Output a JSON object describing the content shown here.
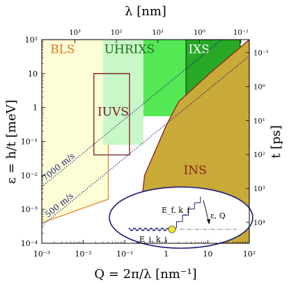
{
  "chart_data": {
    "type": "area",
    "x_scale": "log",
    "y_scale": "log",
    "xlim": [
      0.001,
      100
    ],
    "ylim": [
      0.0001,
      100
    ],
    "xlabel": "Q = 2π/λ [nm⁻¹]",
    "ylabel": "ε = h/t [meV]",
    "top_axis_label": "λ [nm]",
    "right_axis_label": "t [ps]",
    "x_ticks": [
      {
        "value": 0.001,
        "label": "10⁻³"
      },
      {
        "value": 0.01,
        "label": "10⁻²"
      },
      {
        "value": 0.1,
        "label": "10⁻¹"
      },
      {
        "value": 1,
        "label": "1"
      },
      {
        "value": 10,
        "label": "10"
      },
      {
        "value": 100,
        "label": "10²"
      }
    ],
    "y_ticks": [
      {
        "value": 100,
        "label": "10²"
      },
      {
        "value": 10,
        "label": "10"
      },
      {
        "value": 1,
        "label": "1"
      },
      {
        "value": 0.1,
        "label": "10⁻¹"
      },
      {
        "value": 0.01,
        "label": "10⁻²"
      },
      {
        "value": 0.001,
        "label": "10⁻³"
      },
      {
        "value": 0.0001,
        "label": "10⁻⁴"
      }
    ],
    "top_ticks": [
      {
        "lambda_nm": 1000,
        "label": "10³"
      },
      {
        "lambda_nm": 100,
        "label": "10²"
      },
      {
        "lambda_nm": 10,
        "label": "10¹"
      },
      {
        "lambda_nm": 1,
        "label": "10⁰"
      },
      {
        "lambda_nm": 0.1,
        "label": "10⁻¹"
      }
    ],
    "right_ticks": [
      {
        "t_ps": 0.1,
        "label": "10⁻¹"
      },
      {
        "t_ps": 1,
        "label": "10⁰"
      },
      {
        "t_ps": 10,
        "label": "10¹"
      },
      {
        "t_ps": 100,
        "label": "10²"
      },
      {
        "t_ps": 1000,
        "label": "10³"
      },
      {
        "t_ps": 10000,
        "label": "10⁴"
      }
    ],
    "regions": [
      {
        "label": "BLS",
        "fill": "#fefed6",
        "stroke": "#e8832a",
        "polygon": [
          [
            0.001,
            100
          ],
          [
            0.04,
            100
          ],
          [
            0.04,
            0.002
          ],
          [
            0.001,
            0.0004
          ]
        ]
      },
      {
        "label": "UHRIXS",
        "fill": "#c8f8c8",
        "stroke": "none",
        "polygon": [
          [
            0.03,
            100
          ],
          [
            0.28,
            100
          ],
          [
            0.28,
            0.08
          ],
          [
            0.03,
            0.08
          ]
        ]
      },
      {
        "label": "",
        "fill": "#55e855",
        "stroke": "none",
        "polygon": [
          [
            0.28,
            100
          ],
          [
            3.0,
            100
          ],
          [
            3.0,
            0.55
          ],
          [
            0.28,
            0.55
          ]
        ]
      },
      {
        "label": "IXS",
        "fill": "#27a827",
        "stroke": "#1a4a1a",
        "polygon": [
          [
            3.0,
            100
          ],
          [
            60,
            100
          ],
          [
            60,
            1.4
          ],
          [
            3.0,
            1.4
          ]
        ]
      },
      {
        "label": "IUVS",
        "fill": "none",
        "stroke": "#7a1a1a",
        "polygon": [
          [
            0.018,
            10
          ],
          [
            0.13,
            10
          ],
          [
            0.13,
            0.04
          ],
          [
            0.018,
            0.04
          ]
        ]
      },
      {
        "label": "INS",
        "fill": "#c9a938",
        "stroke": "#8c1f1f",
        "polygon": [
          [
            100,
            100
          ],
          [
            100,
            0.0001
          ],
          [
            0.2,
            0.0001
          ],
          [
            0.3,
            0.01
          ],
          [
            1.0,
            0.3
          ],
          [
            2.0,
            1.5
          ],
          [
            11,
            10
          ],
          [
            100,
            100
          ]
        ]
      }
    ],
    "lines": [
      {
        "label": "7000 m/s",
        "color": "#1c1c7a",
        "style": "dotted",
        "points": [
          [
            0.001,
            0.0046
          ],
          [
            100,
            460
          ]
        ]
      },
      {
        "label": "500 m/s",
        "color": "#1c1c7a",
        "style": "dotted",
        "points": [
          [
            0.001,
            0.00033
          ],
          [
            100,
            33
          ]
        ]
      }
    ],
    "inset": {
      "labels": {
        "incident": "E_i, k_i",
        "final": "E_f, k_f",
        "transfer": "ε, Q"
      }
    }
  }
}
